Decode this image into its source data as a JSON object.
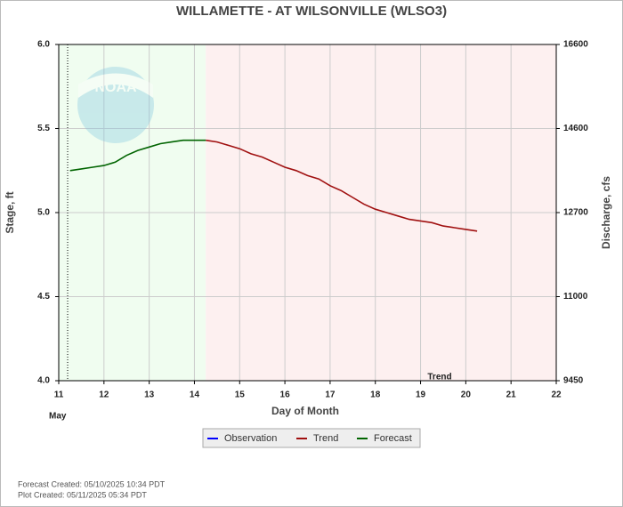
{
  "logo_text": "NOAA",
  "chart_data": {
    "type": "line",
    "title": "WILLAMETTE - AT WILSONVILLE  (WLSO3)",
    "x_label": "Day of Month",
    "y_label": "Stage, ft",
    "y2_label": "Discharge, cfs",
    "month_label": "May",
    "annotation": "Trend",
    "footnotes": [
      "Forecast Created: 05/10/2025 10:34 PDT",
      "Plot Created: 05/11/2025 05:34 PDT"
    ],
    "xlim": [
      11,
      22
    ],
    "xticks": [
      11,
      12,
      13,
      14,
      15,
      16,
      17,
      18,
      19,
      20,
      21,
      22
    ],
    "ylim": [
      4,
      6
    ],
    "yticks": [
      {
        "value": 4,
        "label": "4.0"
      },
      {
        "value": 4.5,
        "label": "4.5"
      },
      {
        "value": 5,
        "label": "5.0"
      },
      {
        "value": 5.5,
        "label": "5.5"
      },
      {
        "value": 6,
        "label": "6.0"
      }
    ],
    "y2lim": [
      9450,
      16600
    ],
    "y2ticks": [
      9450,
      11000,
      12700,
      14600,
      16600
    ],
    "grid": true,
    "series": [
      {
        "name": "Observation",
        "color": "#0000ff",
        "x": [],
        "values": []
      },
      {
        "name": "Trend",
        "color": "#a01010",
        "x": [
          14.25,
          14.5,
          14.75,
          15,
          15.25,
          15.5,
          15.75,
          16,
          16.25,
          16.5,
          16.75,
          17,
          17.25,
          17.5,
          17.75,
          18,
          18.25,
          18.5,
          18.75,
          19,
          19.25,
          19.5,
          19.75,
          20,
          20.25
        ],
        "values": [
          5.43,
          5.42,
          5.4,
          5.38,
          5.35,
          5.33,
          5.3,
          5.27,
          5.25,
          5.22,
          5.2,
          5.16,
          5.13,
          5.09,
          5.05,
          5.02,
          5.0,
          4.98,
          4.96,
          4.95,
          4.94,
          4.92,
          4.91,
          4.9,
          4.89
        ]
      },
      {
        "name": "Forecast",
        "color": "#006400",
        "x": [
          11.25,
          11.5,
          11.75,
          12,
          12.25,
          12.5,
          12.75,
          13,
          13.25,
          13.5,
          13.75,
          14,
          14.25
        ],
        "values": [
          5.25,
          5.26,
          5.27,
          5.28,
          5.3,
          5.34,
          5.37,
          5.39,
          5.41,
          5.42,
          5.43,
          5.43,
          5.43
        ]
      }
    ]
  }
}
